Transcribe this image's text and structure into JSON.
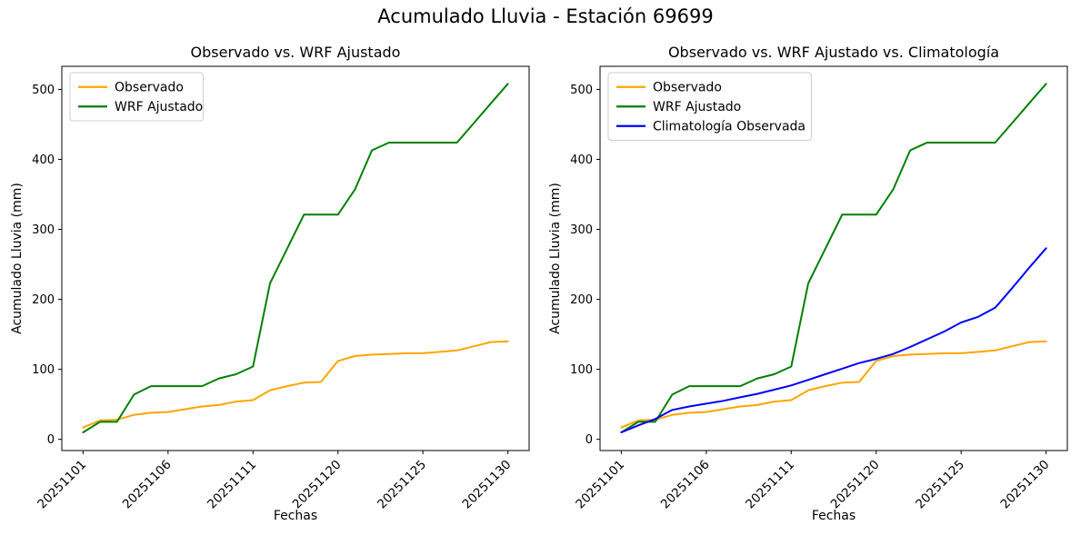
{
  "figure": {
    "suptitle": "Acumulado Lluvia - Estación 69699",
    "background": "#ffffff",
    "text_color": "#000000"
  },
  "chart_data": [
    {
      "type": "line",
      "title": "Observado vs. WRF Ajustado",
      "xlabel": "Fechas",
      "ylabel": "Acumulado Lluvia (mm)",
      "x_is_daily_index": true,
      "x_tick_positions": [
        0,
        5,
        10,
        15,
        20,
        25
      ],
      "x_tick_labels": [
        "20251101",
        "20251106",
        "20251111",
        "20251120",
        "20251125",
        "20251130"
      ],
      "x_tick_rotation": 45,
      "y_ticks": [
        0,
        100,
        200,
        300,
        400,
        500
      ],
      "xlim": [
        -1.25,
        26.25
      ],
      "ylim": [
        -16,
        533
      ],
      "grid": false,
      "legend_position": "upper left",
      "series": [
        {
          "name": "Observado",
          "color": "#FFA500",
          "values": [
            17,
            27,
            28,
            35,
            38,
            39,
            43,
            47,
            49,
            54,
            56,
            70,
            76,
            81,
            82,
            112,
            119,
            121,
            122,
            123,
            123,
            125,
            127,
            133,
            139,
            140
          ]
        },
        {
          "name": "WRF Ajustado",
          "color": "#008000",
          "values": [
            10,
            25,
            25,
            64,
            76,
            76,
            76,
            76,
            87,
            93,
            104,
            223,
            272,
            321,
            321,
            321,
            357,
            413,
            424,
            424,
            424,
            424,
            424,
            452,
            480,
            508
          ]
        }
      ]
    },
    {
      "type": "line",
      "title": "Observado vs. WRF Ajustado vs. Climatología",
      "xlabel": "Fechas",
      "ylabel": "Acumulado Lluvia (mm)",
      "x_is_daily_index": true,
      "x_tick_positions": [
        0,
        5,
        10,
        15,
        20,
        25
      ],
      "x_tick_labels": [
        "20251101",
        "20251106",
        "20251111",
        "20251120",
        "20251125",
        "20251130"
      ],
      "x_tick_rotation": 45,
      "y_ticks": [
        0,
        100,
        200,
        300,
        400,
        500
      ],
      "xlim": [
        -1.25,
        26.25
      ],
      "ylim": [
        -16,
        533
      ],
      "grid": false,
      "legend_position": "upper left",
      "series": [
        {
          "name": "Observado",
          "color": "#FFA500",
          "values": [
            17,
            27,
            28,
            35,
            38,
            39,
            43,
            47,
            49,
            54,
            56,
            70,
            76,
            81,
            82,
            112,
            119,
            121,
            122,
            123,
            123,
            125,
            127,
            133,
            139,
            140
          ]
        },
        {
          "name": "WRF Ajustado",
          "color": "#008000",
          "values": [
            10,
            25,
            25,
            64,
            76,
            76,
            76,
            76,
            87,
            93,
            104,
            223,
            272,
            321,
            321,
            321,
            357,
            413,
            424,
            424,
            424,
            424,
            424,
            452,
            480,
            508
          ]
        },
        {
          "name": "Climatología Observada",
          "color": "#0000FF",
          "values": [
            10,
            20,
            29,
            42,
            47,
            51,
            55,
            60,
            65,
            71,
            77,
            85,
            93,
            101,
            109,
            115,
            122,
            132,
            143,
            154,
            167,
            175,
            188,
            216,
            245,
            273
          ]
        }
      ]
    }
  ]
}
